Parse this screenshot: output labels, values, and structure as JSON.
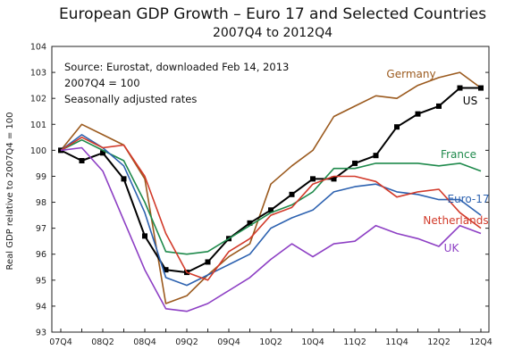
{
  "chart_data": {
    "type": "line",
    "title": "European GDP Growth – Euro 17 and Selected Countries",
    "subtitle": "2007Q4 to 2012Q4",
    "ylabel": "Real GDP relative to 2007Q4 = 100",
    "xlabel": "",
    "ylim": [
      93,
      104
    ],
    "yticks": [
      "93",
      "94",
      "95",
      "96",
      "97",
      "98",
      "99",
      "100",
      "101",
      "102",
      "103",
      "104"
    ],
    "xticks": [
      "07Q4",
      "08Q2",
      "08Q4",
      "09Q2",
      "09Q4",
      "10Q2",
      "10Q4",
      "11Q2",
      "11Q4",
      "12Q2",
      "12Q4"
    ],
    "x": [
      "07Q4",
      "08Q1",
      "08Q2",
      "08Q3",
      "08Q4",
      "09Q1",
      "09Q2",
      "09Q3",
      "09Q4",
      "10Q1",
      "10Q2",
      "10Q3",
      "10Q4",
      "11Q1",
      "11Q2",
      "11Q3",
      "11Q4",
      "12Q1",
      "12Q2",
      "12Q3",
      "12Q4"
    ],
    "notes": [
      "Source:  Eurostat, downloaded Feb 14, 2013",
      "2007Q4 = 100",
      "Seasonally adjusted rates"
    ],
    "grid": false,
    "series": [
      {
        "name": "Germany",
        "color": "#9b5a1e",
        "markers": false,
        "values": [
          100,
          101.0,
          100.6,
          100.2,
          98.9,
          94.1,
          94.4,
          95.2,
          95.9,
          96.4,
          98.7,
          99.4,
          100.0,
          101.3,
          101.7,
          102.1,
          102.0,
          102.5,
          102.8,
          103.0,
          102.4
        ]
      },
      {
        "name": "US",
        "color": "#000000",
        "markers": true,
        "values": [
          100,
          99.6,
          99.9,
          98.9,
          96.7,
          95.4,
          95.3,
          95.7,
          96.6,
          97.2,
          97.7,
          98.3,
          98.9,
          98.9,
          99.5,
          99.8,
          100.9,
          101.4,
          101.7,
          102.4,
          102.4
        ]
      },
      {
        "name": "France",
        "color": "#1f8a4c",
        "markers": false,
        "values": [
          100,
          100.4,
          100.0,
          99.6,
          98.0,
          96.1,
          96.0,
          96.1,
          96.6,
          97.1,
          97.6,
          97.9,
          98.4,
          99.3,
          99.3,
          99.5,
          99.5,
          99.5,
          99.4,
          99.5,
          99.2
        ]
      },
      {
        "name": "Euro-17",
        "color": "#2d62b0",
        "markers": false,
        "values": [
          100,
          100.6,
          100.1,
          99.4,
          97.6,
          95.1,
          94.8,
          95.2,
          95.6,
          96.0,
          97.0,
          97.4,
          97.7,
          98.4,
          98.6,
          98.7,
          98.4,
          98.3,
          98.1,
          98.1,
          97.5
        ]
      },
      {
        "name": "Netherlands",
        "color": "#d23a2a",
        "markers": false,
        "values": [
          100,
          100.5,
          100.1,
          100.2,
          99.0,
          96.8,
          95.3,
          95.0,
          96.1,
          96.6,
          97.5,
          97.8,
          98.7,
          99.0,
          99.0,
          98.8,
          98.2,
          98.4,
          98.5,
          97.6,
          97.0
        ]
      },
      {
        "name": "UK",
        "color": "#8d3fc4",
        "markers": false,
        "values": [
          100,
          100.1,
          99.2,
          97.3,
          95.4,
          93.9,
          93.8,
          94.1,
          94.6,
          95.1,
          95.8,
          96.4,
          95.9,
          96.4,
          96.5,
          97.1,
          96.8,
          96.6,
          96.3,
          97.1,
          96.8
        ]
      }
    ]
  }
}
